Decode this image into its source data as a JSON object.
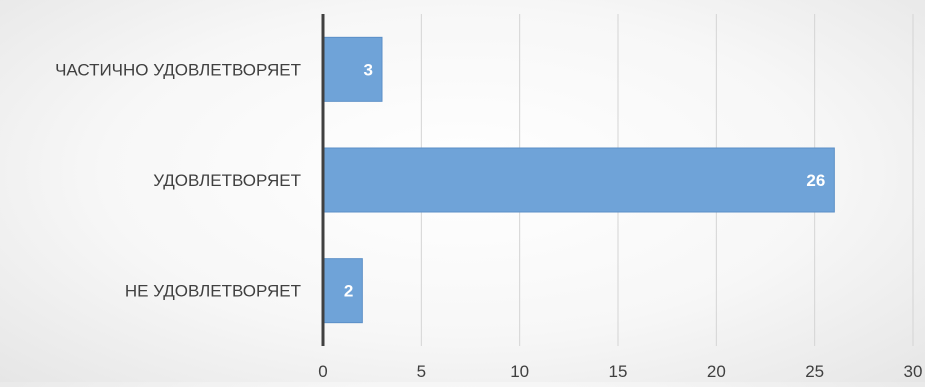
{
  "chart_data": {
    "type": "bar",
    "orientation": "horizontal",
    "categories": [
      "НЕ УДОВЛЕТВОРЯЕТ",
      "УДОВЛЕТВОРЯЕТ",
      "ЧАСТИЧНО УДОВЛЕТВОРЯЕТ"
    ],
    "values": [
      2,
      26,
      3
    ],
    "data_labels": [
      "2",
      "26",
      "3"
    ],
    "xlim": [
      0,
      30
    ],
    "x_ticks": [
      0,
      5,
      10,
      15,
      20,
      25,
      30
    ],
    "x_tick_labels": [
      "0",
      "5",
      "10",
      "15",
      "20",
      "25",
      "30"
    ],
    "grid": "vertical",
    "legend": "none",
    "title": "",
    "xlabel": "",
    "ylabel": "",
    "colors": {
      "bar": "#6fa3d8",
      "bar_edge": "#5b8fc7",
      "grid": "#d4d4d4",
      "axis": "#404040",
      "text": "#404040",
      "data_label": "#ffffff"
    }
  }
}
